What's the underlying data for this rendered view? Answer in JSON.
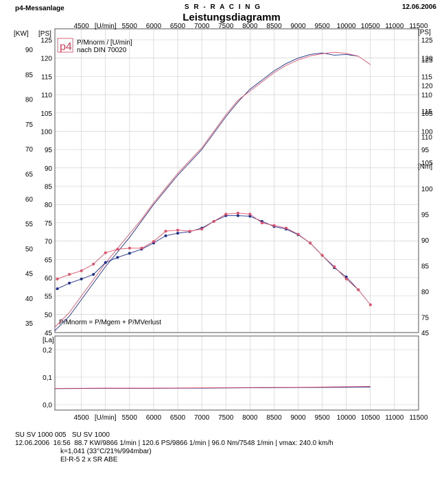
{
  "header": {
    "left": "p4-Messanlage",
    "center": "S R - R A C I N G",
    "title": "Leistungsdiagramm",
    "date": "12.06.2006"
  },
  "main_chart": {
    "left_axis_unit_kw": "[KW]",
    "left_axis_unit_ps": "[PS]",
    "right_axis_unit_ps": "[PS]",
    "right_axis_unit_nm": "[Nm]",
    "x_unit": "[U/min]",
    "legend_logo": "p4",
    "legend_line1": "P/Mnorm / [U/min]",
    "legend_line2": "nach DIN 70020",
    "formula": "P/Mnorm = P/Mgem + P/MVerlust"
  },
  "lambda_chart": {
    "axis_unit": "[La]"
  },
  "footer": {
    "line1_a": "SU SV 1000 005",
    "line1_b": "SU SV 1000",
    "line2_a": "12.06.2006",
    "line2_b": "16:56",
    "line2_c": "88.7 KW/9866 1/min  |  120.6 PS/9866 1/min  |  96.0 Nm/7548 1/min | vmax: 240.0 km/h",
    "line3": "k=1,041 (33°C/21%/994mbar)",
    "line4": "El-R-5 2 x SR ABE"
  },
  "colors": {
    "run_a": "#1c2f8c",
    "run_b": "#e0506a",
    "grid": "#c8c8c8",
    "logo": "#d0405a"
  },
  "chart_data": [
    {
      "type": "line",
      "title": "Leistungsdiagramm",
      "xlabel": "[U/min]",
      "ylabel": "[PS]",
      "xlim": [
        3950,
        11500
      ],
      "xticks": [
        4500,
        5000,
        5500,
        6000,
        6500,
        7000,
        7500,
        8000,
        8500,
        9000,
        9500,
        10000,
        10500,
        11000,
        11500
      ],
      "x_tick_labels": [
        "4500",
        "[U/min]",
        "5500",
        "6000",
        "6500",
        "7000",
        "7500",
        "8000",
        "8500",
        "9000",
        "9500",
        "10000",
        "10500",
        "11000",
        "11500"
      ],
      "y_axes": {
        "ps_left": {
          "unit": "[PS]",
          "lim": [
            45,
            128
          ],
          "ticks": [
            50,
            55,
            60,
            65,
            70,
            75,
            80,
            85,
            90,
            95,
            100,
            105,
            110,
            115,
            120,
            125
          ]
        },
        "kw_left": {
          "unit": "[KW]",
          "ticks": [
            35,
            40,
            45,
            50,
            55,
            60,
            65,
            70,
            75,
            80,
            85,
            90
          ]
        },
        "ps_right": {
          "unit": "[PS]",
          "ticks": [
            95,
            100,
            105,
            110,
            115,
            120,
            125
          ]
        },
        "nm_right": {
          "unit": "[Nm]",
          "lim": [
            72,
            131
          ],
          "ticks": [
            45,
            75,
            80,
            85,
            90,
            95,
            100,
            105,
            110,
            115,
            120,
            125
          ]
        }
      },
      "grid": true,
      "legend": "top-left",
      "series": [
        {
          "quantity": "power_ps",
          "axis": "ps_left",
          "x": [
            3950,
            4250,
            4500,
            4750,
            5000,
            5250,
            5500,
            5750,
            6000,
            6250,
            6500,
            6750,
            7000,
            7250,
            7500,
            7750,
            8000,
            8250,
            8500,
            8750,
            9000,
            9250,
            9500,
            9750,
            10000,
            10250
          ],
          "y": [
            45.5,
            49.5,
            54.0,
            58.5,
            63.0,
            67.0,
            71.0,
            75.5,
            80.0,
            84.0,
            88.0,
            91.5,
            95.0,
            99.5,
            104.0,
            108.0,
            111.5,
            114.0,
            116.5,
            118.5,
            120.0,
            121.0,
            121.4,
            120.8,
            121.0,
            120.5
          ]
        },
        {
          "quantity": "power_ps",
          "axis": "ps_left",
          "x": [
            3950,
            4250,
            4500,
            4750,
            5000,
            5250,
            5500,
            5750,
            6000,
            6250,
            6500,
            6750,
            7000,
            7250,
            7500,
            7750,
            8000,
            8250,
            8500,
            8750,
            9000,
            9250,
            9500,
            9750,
            10000,
            10250,
            10500
          ],
          "y": [
            46.5,
            50.5,
            55.0,
            59.5,
            64.0,
            68.0,
            72.0,
            76.0,
            80.5,
            84.5,
            88.5,
            92.0,
            95.5,
            100.0,
            104.5,
            108.5,
            111.0,
            113.5,
            116.0,
            118.0,
            119.5,
            120.6,
            121.2,
            121.6,
            121.3,
            120.5,
            118.2
          ]
        },
        {
          "quantity": "torque_nm",
          "axis": "nm_right",
          "x": [
            4000,
            4250,
            4500,
            4750,
            5000,
            5250,
            5500,
            5750,
            6000,
            6250,
            6500,
            6750,
            7000,
            7250,
            7500,
            7750,
            8000,
            8250,
            8500,
            8750,
            9000,
            9250,
            9500,
            9750,
            10000,
            10250
          ],
          "y": [
            80.5,
            81.6,
            82.4,
            83.3,
            85.6,
            86.6,
            87.4,
            88.2,
            89.4,
            90.8,
            91.3,
            91.6,
            92.3,
            93.6,
            94.7,
            94.7,
            94.6,
            93.6,
            92.6,
            92.1,
            91.0,
            89.4,
            87.0,
            84.6,
            82.8,
            80.3
          ]
        },
        {
          "quantity": "torque_nm",
          "axis": "nm_right",
          "x": [
            4000,
            4250,
            4500,
            4750,
            5000,
            5250,
            5500,
            5750,
            6000,
            6250,
            6500,
            6750,
            7000,
            7250,
            7500,
            7750,
            8000,
            8250,
            8500,
            8750,
            9000,
            9250,
            9500,
            9750,
            10000,
            10250,
            10500
          ],
          "y": [
            82.4,
            83.3,
            84.0,
            85.3,
            87.5,
            88.2,
            88.4,
            88.4,
            89.7,
            91.7,
            91.9,
            91.7,
            92.1,
            93.6,
            95.0,
            95.2,
            95.0,
            93.3,
            92.8,
            92.3,
            91.1,
            89.4,
            87.0,
            84.8,
            82.4,
            80.3,
            77.4
          ]
        }
      ]
    },
    {
      "type": "line",
      "ylabel": "[La]",
      "xlim": [
        3950,
        11500
      ],
      "xticks": [
        4500,
        5000,
        5500,
        6000,
        6500,
        7000,
        7500,
        8000,
        8500,
        9000,
        9500,
        10000,
        10500,
        11000,
        11500
      ],
      "x_tick_labels": [
        "4500",
        "[U/min]",
        "5500",
        "6000",
        "6500",
        "7000",
        "7500",
        "8000",
        "8500",
        "9000",
        "9500",
        "10000",
        "10500",
        "11000",
        "11500"
      ],
      "ylim": [
        -0.02,
        0.25
      ],
      "yticks": [
        0.0,
        0.1,
        0.2
      ],
      "y_tick_labels": [
        "0,0",
        "0,1",
        "0,2"
      ],
      "grid": true,
      "series": [
        {
          "x": [
            3950,
            5000,
            6000,
            7000,
            8000,
            9000,
            10000,
            10500
          ],
          "y": [
            0.058,
            0.059,
            0.059,
            0.06,
            0.061,
            0.062,
            0.063,
            0.064
          ]
        },
        {
          "x": [
            3950,
            5000,
            6000,
            7000,
            8000,
            9000,
            10000,
            10500
          ],
          "y": [
            0.059,
            0.06,
            0.06,
            0.061,
            0.062,
            0.063,
            0.065,
            0.066
          ]
        }
      ]
    }
  ]
}
